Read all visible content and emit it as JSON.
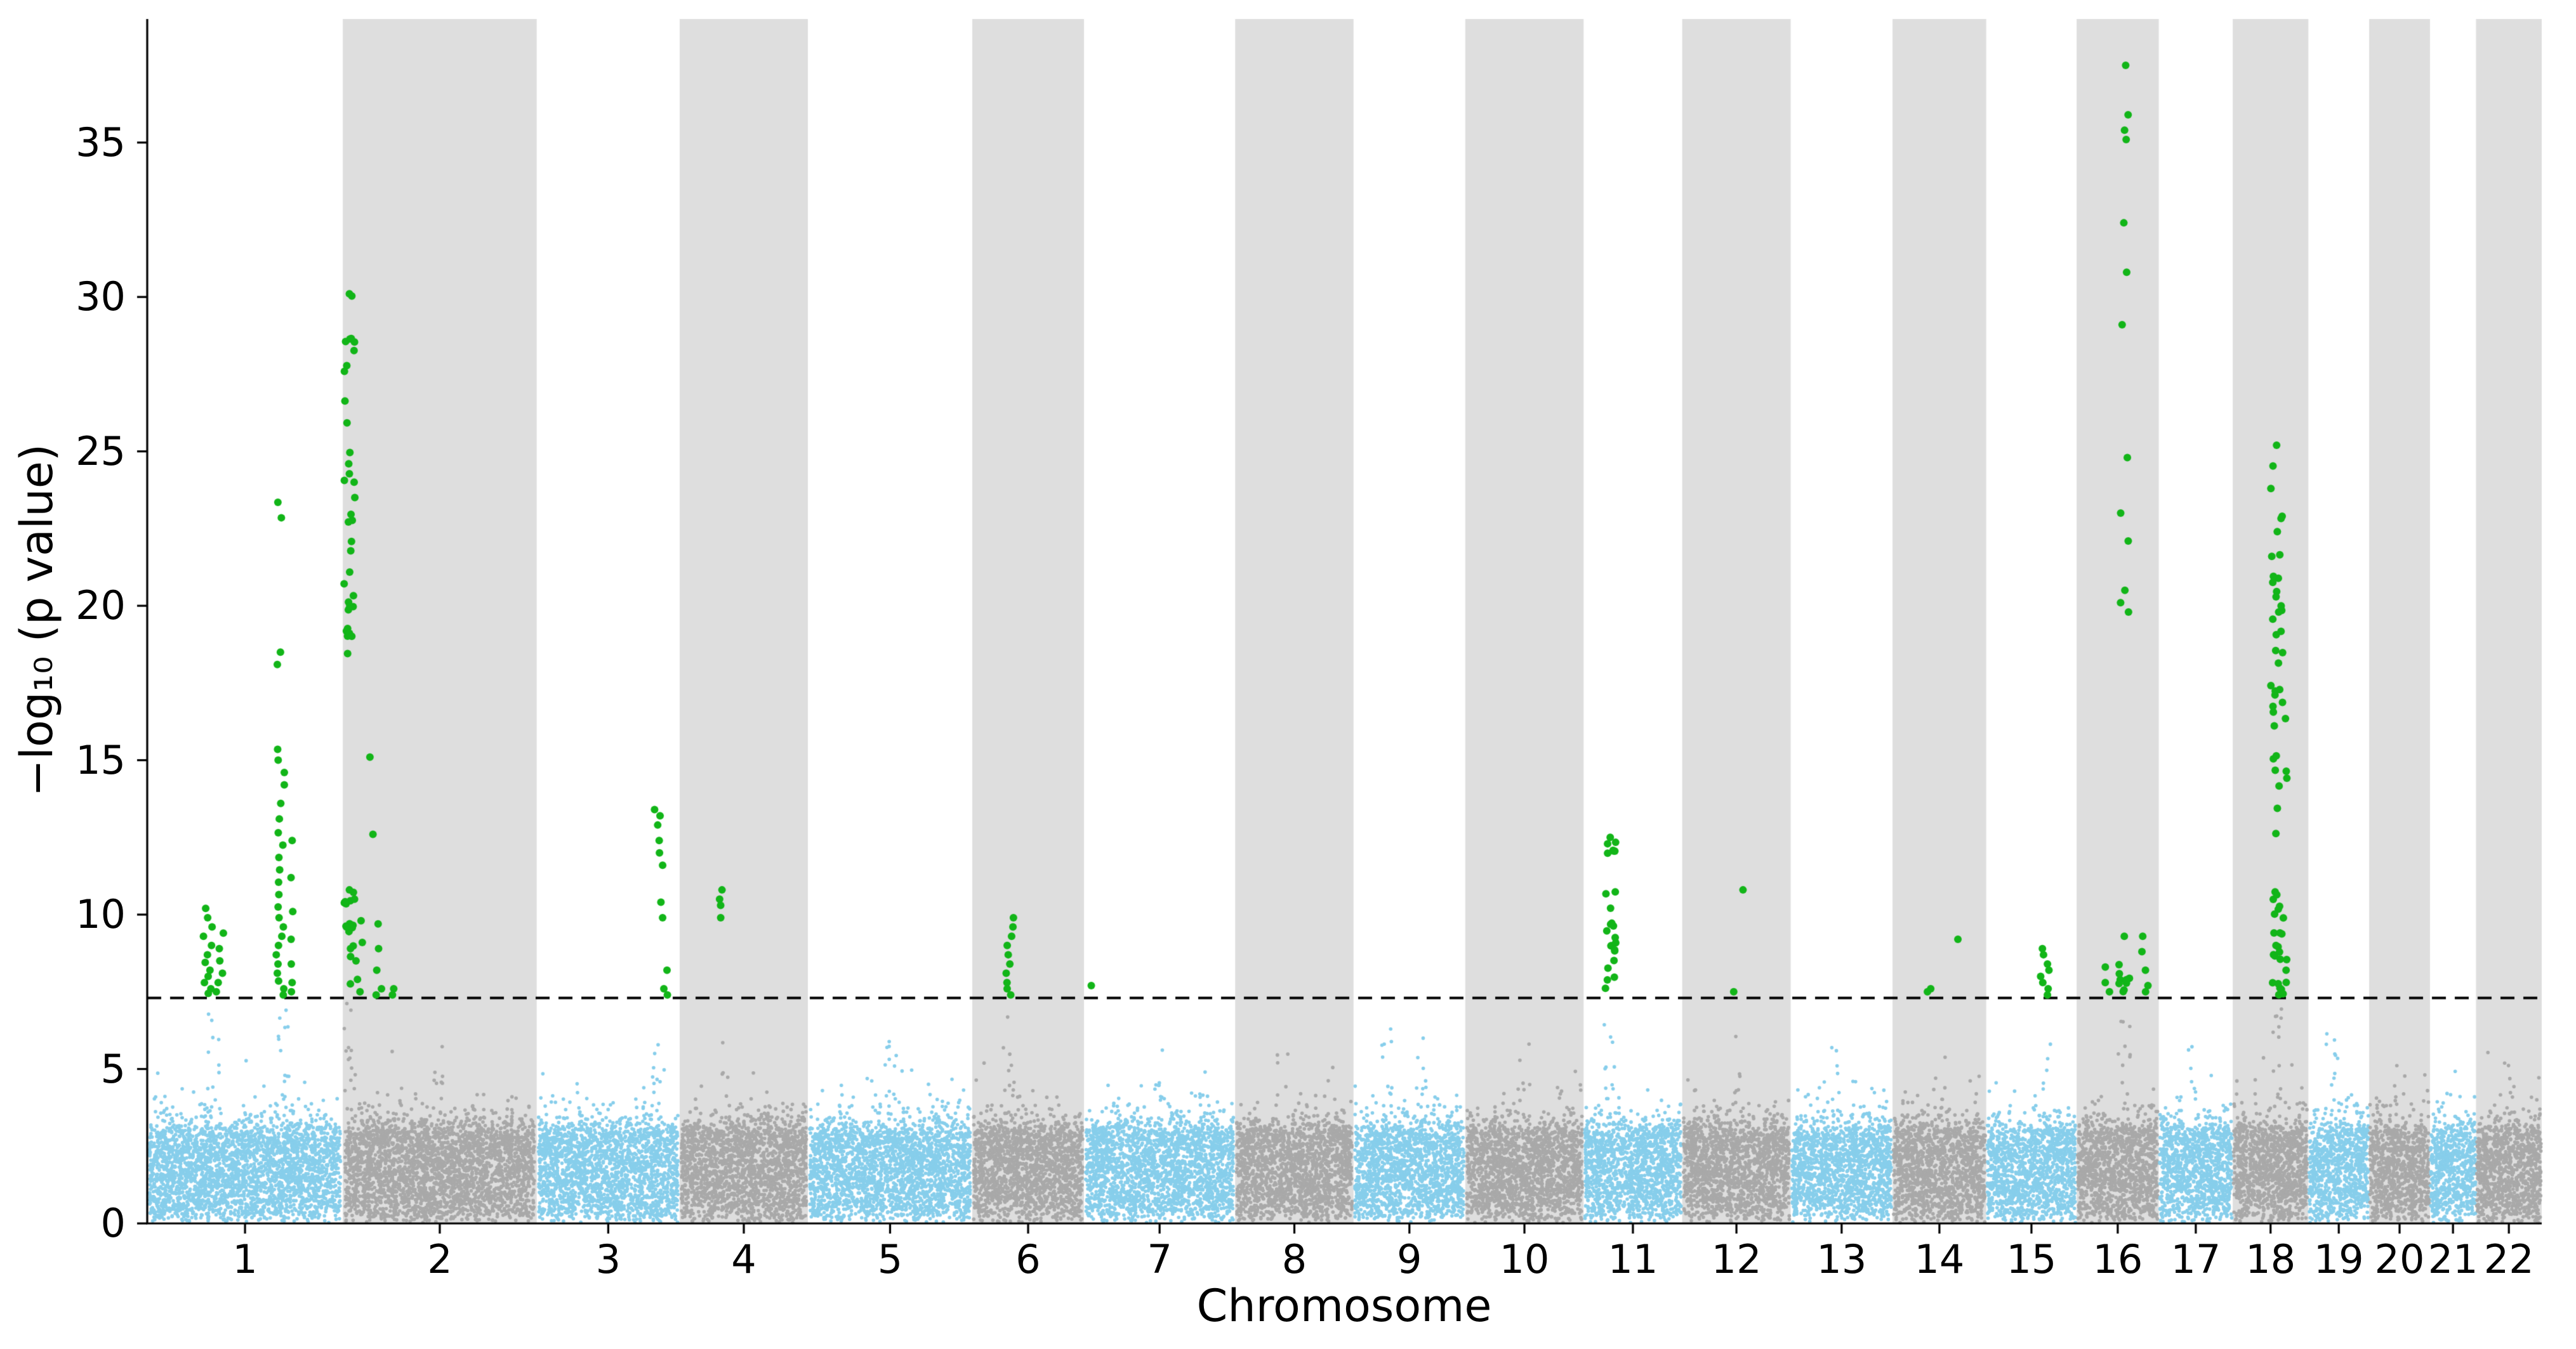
{
  "chart_data": {
    "type": "scatter",
    "variant": "manhattan",
    "title": "",
    "xlabel": "Chromosome",
    "ylabel": "−log₁₀ (p value)",
    "ylim": [
      0,
      39
    ],
    "yticks": [
      0,
      5,
      10,
      15,
      20,
      25,
      30,
      35
    ],
    "threshold_line": {
      "y": 7.3,
      "style": "dashed",
      "color": "#000000"
    },
    "colors": {
      "odd_chromosome": "#87CEEB",
      "even_chromosome": "#A9A9A9",
      "significant": "#12b518",
      "band_shade": "#dedede",
      "axis": "#000000"
    },
    "chromosomes": [
      {
        "chr": "1",
        "rel_width": 119,
        "shaded": false
      },
      {
        "chr": "2",
        "rel_width": 118,
        "shaded": true
      },
      {
        "chr": "3",
        "rel_width": 87,
        "shaded": false
      },
      {
        "chr": "4",
        "rel_width": 78,
        "shaded": true
      },
      {
        "chr": "5",
        "rel_width": 100,
        "shaded": false
      },
      {
        "chr": "6",
        "rel_width": 68,
        "shaded": true
      },
      {
        "chr": "7",
        "rel_width": 92,
        "shaded": false
      },
      {
        "chr": "8",
        "rel_width": 72,
        "shaded": true
      },
      {
        "chr": "9",
        "rel_width": 68,
        "shaded": false
      },
      {
        "chr": "10",
        "rel_width": 72,
        "shaded": true
      },
      {
        "chr": "11",
        "rel_width": 60,
        "shaded": false
      },
      {
        "chr": "12",
        "rel_width": 66,
        "shaded": true
      },
      {
        "chr": "13",
        "rel_width": 62,
        "shaded": false
      },
      {
        "chr": "14",
        "rel_width": 57,
        "shaded": true
      },
      {
        "chr": "15",
        "rel_width": 55,
        "shaded": false
      },
      {
        "chr": "16",
        "rel_width": 50,
        "shaded": true
      },
      {
        "chr": "17",
        "rel_width": 45,
        "shaded": false
      },
      {
        "chr": "18",
        "rel_width": 46,
        "shaded": true
      },
      {
        "chr": "19",
        "rel_width": 37,
        "shaded": false
      },
      {
        "chr": "20",
        "rel_width": 37,
        "shaded": true
      },
      {
        "chr": "21",
        "rel_width": 28,
        "shaded": false
      },
      {
        "chr": "22",
        "rel_width": 40,
        "shaded": true
      }
    ],
    "significant_peaks": [
      {
        "chr": 1,
        "frac": 0.31,
        "ys": [
          10.2,
          9.9,
          9.6,
          9.3,
          9.0,
          8.7,
          8.45,
          8.2,
          8.0,
          7.8,
          7.6,
          7.45
        ]
      },
      {
        "chr": 1,
        "frac": 0.37,
        "ys": [
          9.4,
          8.9,
          8.5,
          8.1,
          7.8,
          7.5
        ]
      },
      {
        "chr": 1,
        "frac": 0.68,
        "ys": [
          23.35,
          22.85,
          18.5,
          18.1,
          15.35,
          15.0,
          14.6,
          14.2,
          13.6,
          13.1,
          12.65,
          12.25,
          11.85,
          11.45,
          11.05,
          10.65,
          10.25,
          9.9,
          9.6,
          9.3,
          9.0,
          8.7,
          8.4,
          8.1,
          7.85,
          7.6,
          7.4
        ]
      },
      {
        "chr": 1,
        "frac": 0.73,
        "ys": [
          12.4,
          11.2,
          10.1,
          9.2,
          8.4,
          7.8,
          7.5
        ]
      },
      {
        "chr": 2,
        "frac": 0.034,
        "cluster": {
          "ymin": 18.4,
          "ymax": 30.1,
          "n": 34,
          "bias": 1.0
        }
      },
      {
        "chr": 2,
        "frac": 0.034,
        "cluster": {
          "ymin": 7.4,
          "ymax": 10.8,
          "n": 16,
          "bias": 1.1
        }
      },
      {
        "chr": 2,
        "frac": 0.08,
        "ys": [
          10.5,
          9.8,
          9.1,
          8.5,
          7.9,
          7.5
        ]
      },
      {
        "chr": 2,
        "frac": 0.135,
        "ys": [
          15.1,
          12.6
        ]
      },
      {
        "chr": 2,
        "frac": 0.19,
        "ys": [
          9.7,
          8.9,
          8.2,
          7.6,
          7.4
        ]
      },
      {
        "chr": 2,
        "frac": 0.26,
        "ys": [
          7.6,
          7.4
        ]
      },
      {
        "chr": 3,
        "frac": 0.85,
        "ys": [
          13.4,
          13.2,
          12.9,
          12.4,
          12.0,
          11.6,
          10.4,
          9.9
        ]
      },
      {
        "chr": 3,
        "frac": 0.9,
        "ys": [
          8.2,
          7.6,
          7.4
        ]
      },
      {
        "chr": 4,
        "frac": 0.34,
        "ys": [
          10.8,
          10.5,
          10.3,
          9.9
        ]
      },
      {
        "chr": 6,
        "frac": 0.33,
        "ys": [
          9.9,
          9.6,
          9.3,
          9.0,
          8.7,
          8.4,
          8.1,
          7.8,
          7.6,
          7.4
        ]
      },
      {
        "chr": 7,
        "frac": 0.02,
        "ys": [
          7.7
        ]
      },
      {
        "chr": 11,
        "frac": 0.27,
        "cluster": {
          "ymin": 7.4,
          "ymax": 12.5,
          "n": 24,
          "bias": 1.15
        }
      },
      {
        "chr": 12,
        "frac": 0.45,
        "ys": [
          7.5
        ]
      },
      {
        "chr": 12,
        "frac": 0.53,
        "ys": [
          10.8
        ]
      },
      {
        "chr": 14,
        "frac": 0.39,
        "ys": [
          7.6,
          7.5
        ]
      },
      {
        "chr": 14,
        "frac": 0.7,
        "ys": [
          9.2
        ]
      },
      {
        "chr": 15,
        "frac": 0.65,
        "ys": [
          8.9,
          8.7,
          8.4,
          8.2,
          8.0,
          7.8,
          7.6,
          7.4
        ]
      },
      {
        "chr": 16,
        "frac": 0.35,
        "ys": [
          8.3,
          7.8,
          7.5
        ]
      },
      {
        "chr": 16,
        "frac": 0.58,
        "ys": [
          37.5,
          35.9,
          35.4,
          35.1,
          32.4,
          30.8,
          29.1,
          24.8,
          23.0,
          22.1,
          20.5,
          20.1,
          19.8
        ]
      },
      {
        "chr": 16,
        "frac": 0.58,
        "cluster": {
          "ymin": 7.4,
          "ymax": 9.3,
          "n": 9,
          "bias": 1.0
        }
      },
      {
        "chr": 16,
        "frac": 0.82,
        "ys": [
          9.3,
          8.8,
          8.2,
          7.7,
          7.5
        ]
      },
      {
        "chr": 18,
        "frac": 0.58,
        "cluster": {
          "ymin": 7.4,
          "ymax": 25.2,
          "n": 46,
          "bias": 1.7
        }
      },
      {
        "chr": 18,
        "frac": 0.64,
        "cluster": {
          "ymin": 7.4,
          "ymax": 20.0,
          "n": 16,
          "bias": 1.4
        }
      }
    ],
    "subthreshold_spikes": [
      {
        "chr": 1,
        "frac": 0.34,
        "ymax": 6.8,
        "n": 10
      },
      {
        "chr": 1,
        "frac": 0.7,
        "ymax": 7.0,
        "n": 12
      },
      {
        "chr": 2,
        "frac": 0.034,
        "ymax": 7.2,
        "n": 12
      },
      {
        "chr": 2,
        "frac": 0.5,
        "ymax": 5.8,
        "n": 6
      },
      {
        "chr": 3,
        "frac": 0.85,
        "ymax": 6.3,
        "n": 8
      },
      {
        "chr": 4,
        "frac": 0.34,
        "ymax": 5.9,
        "n": 5
      },
      {
        "chr": 5,
        "frac": 0.5,
        "ymax": 6.0,
        "n": 8
      },
      {
        "chr": 6,
        "frac": 0.33,
        "ymax": 7.0,
        "n": 10
      },
      {
        "chr": 7,
        "frac": 0.5,
        "ymax": 5.7,
        "n": 6
      },
      {
        "chr": 8,
        "frac": 0.4,
        "ymax": 5.6,
        "n": 5
      },
      {
        "chr": 9,
        "frac": 0.3,
        "ymax": 6.4,
        "n": 8
      },
      {
        "chr": 9,
        "frac": 0.6,
        "ymax": 6.2,
        "n": 6
      },
      {
        "chr": 10,
        "frac": 0.5,
        "ymax": 6.1,
        "n": 6
      },
      {
        "chr": 11,
        "frac": 0.27,
        "ymax": 7.3,
        "n": 10
      },
      {
        "chr": 12,
        "frac": 0.53,
        "ymax": 6.3,
        "n": 6
      },
      {
        "chr": 13,
        "frac": 0.45,
        "ymax": 5.8,
        "n": 5
      },
      {
        "chr": 14,
        "frac": 0.5,
        "ymax": 5.5,
        "n": 4
      },
      {
        "chr": 15,
        "frac": 0.65,
        "ymax": 6.1,
        "n": 5
      },
      {
        "chr": 16,
        "frac": 0.58,
        "ymax": 7.2,
        "n": 10
      },
      {
        "chr": 17,
        "frac": 0.45,
        "ymax": 6.0,
        "n": 6
      },
      {
        "chr": 18,
        "frac": 0.58,
        "ymax": 7.2,
        "n": 10
      },
      {
        "chr": 19,
        "frac": 0.4,
        "ymax": 6.4,
        "n": 8
      },
      {
        "chr": 20,
        "frac": 0.5,
        "ymax": 5.3,
        "n": 4
      },
      {
        "chr": 21,
        "frac": 0.5,
        "ymax": 5.0,
        "n": 3
      },
      {
        "chr": 22,
        "frac": 0.5,
        "ymax": 5.3,
        "n": 4
      }
    ],
    "background_points": {
      "seed": 1337,
      "density": 25,
      "base_max": 2.9,
      "tail_scale": 0.78
    }
  }
}
